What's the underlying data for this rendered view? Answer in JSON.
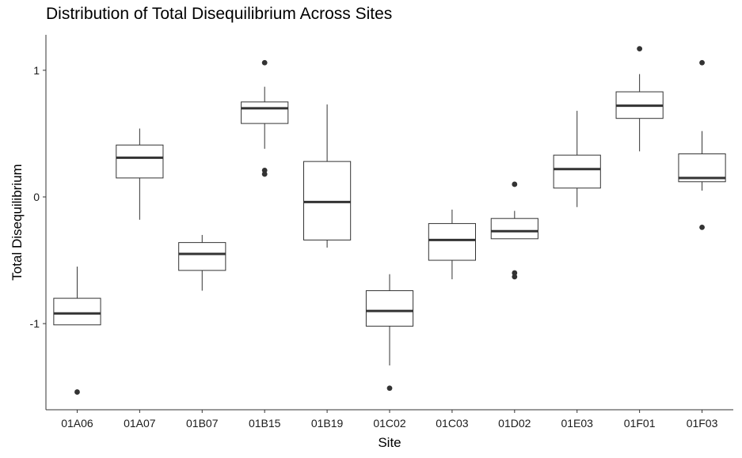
{
  "chart_data": {
    "type": "boxplot",
    "title": "Distribution of Total Disequilibrium Across Sites",
    "xlabel": "Site",
    "ylabel": "Total Disequilibrium",
    "ylim": [
      -1.68,
      1.28
    ],
    "yticks": [
      -1,
      0,
      1
    ],
    "grid": false,
    "categories": [
      "01A06",
      "01A07",
      "01B07",
      "01B15",
      "01B19",
      "01C02",
      "01C03",
      "01D02",
      "01E03",
      "01F01",
      "01F03"
    ],
    "boxes": [
      {
        "site": "01A06",
        "q1": -1.01,
        "median": -0.92,
        "q3": -0.8,
        "whisker_low": -1.01,
        "whisker_high": -0.55,
        "outliers": [
          -1.54
        ]
      },
      {
        "site": "01A07",
        "q1": 0.15,
        "median": 0.31,
        "q3": 0.41,
        "whisker_low": -0.18,
        "whisker_high": 0.54,
        "outliers": []
      },
      {
        "site": "01B07",
        "q1": -0.58,
        "median": -0.45,
        "q3": -0.36,
        "whisker_low": -0.74,
        "whisker_high": -0.3,
        "outliers": []
      },
      {
        "site": "01B15",
        "q1": 0.58,
        "median": 0.7,
        "q3": 0.75,
        "whisker_low": 0.38,
        "whisker_high": 0.87,
        "outliers": [
          1.06,
          0.21,
          0.18
        ]
      },
      {
        "site": "01B19",
        "q1": -0.34,
        "median": -0.04,
        "q3": 0.28,
        "whisker_low": -0.4,
        "whisker_high": 0.73,
        "outliers": []
      },
      {
        "site": "01C02",
        "q1": -1.02,
        "median": -0.9,
        "q3": -0.74,
        "whisker_low": -1.33,
        "whisker_high": -0.61,
        "outliers": [
          -1.51
        ]
      },
      {
        "site": "01C03",
        "q1": -0.5,
        "median": -0.34,
        "q3": -0.21,
        "whisker_low": -0.65,
        "whisker_high": -0.1,
        "outliers": []
      },
      {
        "site": "01D02",
        "q1": -0.33,
        "median": -0.27,
        "q3": -0.17,
        "whisker_low": -0.33,
        "whisker_high": -0.11,
        "outliers": [
          0.1,
          -0.6,
          -0.63
        ]
      },
      {
        "site": "01E03",
        "q1": 0.07,
        "median": 0.22,
        "q3": 0.33,
        "whisker_low": -0.08,
        "whisker_high": 0.68,
        "outliers": []
      },
      {
        "site": "01F01",
        "q1": 0.62,
        "median": 0.72,
        "q3": 0.83,
        "whisker_low": 0.36,
        "whisker_high": 0.97,
        "outliers": [
          1.17
        ]
      },
      {
        "site": "01F03",
        "q1": 0.12,
        "median": 0.15,
        "q3": 0.34,
        "whisker_low": 0.05,
        "whisker_high": 0.52,
        "outliers": [
          1.06,
          -0.24
        ]
      }
    ]
  }
}
